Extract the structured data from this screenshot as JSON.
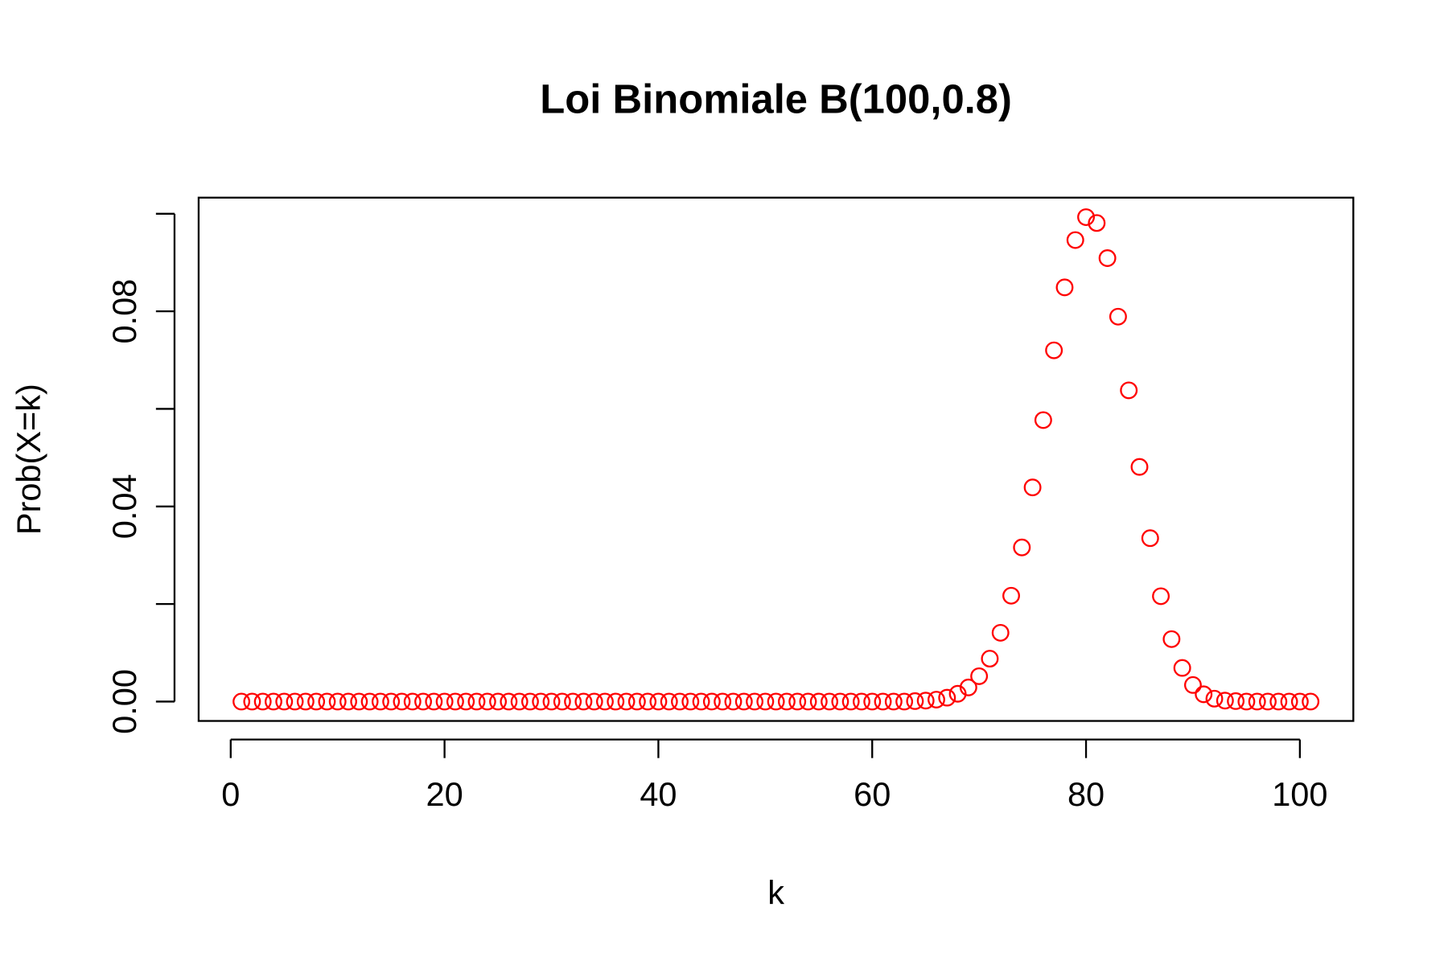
{
  "chart_data": {
    "type": "scatter",
    "title": "Loi Binomiale B(100,0.8)",
    "x_label": "k",
    "y_label": "Prob(X=k)",
    "x": [
      1,
      2,
      3,
      4,
      5,
      6,
      7,
      8,
      9,
      10,
      11,
      12,
      13,
      14,
      15,
      16,
      17,
      18,
      19,
      20,
      21,
      22,
      23,
      24,
      25,
      26,
      27,
      28,
      29,
      30,
      31,
      32,
      33,
      34,
      35,
      36,
      37,
      38,
      39,
      40,
      41,
      42,
      43,
      44,
      45,
      46,
      47,
      48,
      49,
      50,
      51,
      52,
      53,
      54,
      55,
      56,
      57,
      58,
      59,
      60,
      61,
      62,
      63,
      64,
      65,
      66,
      67,
      68,
      69,
      70,
      71,
      72,
      73,
      74,
      75,
      76,
      77,
      78,
      79,
      80,
      81,
      82,
      83,
      84,
      85,
      86,
      87,
      88,
      89,
      90,
      91,
      92,
      93,
      94,
      95,
      96,
      97,
      98,
      99,
      100,
      101
    ],
    "values": [
      0,
      0,
      0,
      0,
      0,
      0,
      0,
      0,
      0,
      0,
      0,
      0,
      0,
      0,
      0,
      0,
      0,
      0,
      0,
      0,
      0,
      0,
      0,
      0,
      0,
      0,
      0,
      0,
      0,
      0,
      0,
      0,
      0,
      0,
      0,
      0,
      0,
      0,
      0,
      0,
      0,
      0,
      0,
      0,
      0,
      0,
      0,
      0,
      0,
      0,
      0,
      0,
      0,
      0,
      0,
      0,
      0,
      0,
      0,
      0,
      0,
      0,
      0,
      0.0001,
      0.0002,
      0.0004,
      0.0008,
      0.0016,
      0.0029,
      0.0052,
      0.0088,
      0.0141,
      0.0217,
      0.0316,
      0.0439,
      0.0577,
      0.072,
      0.0849,
      0.0946,
      0.0993,
      0.0981,
      0.0909,
      0.0789,
      0.0638,
      0.0481,
      0.0335,
      0.0216,
      0.0128,
      0.0069,
      0.0034,
      0.0015,
      0.0006,
      0.0002,
      0.0001,
      0,
      0,
      0,
      0,
      0,
      0,
      0
    ],
    "color": "#ff0000",
    "xlim": [
      -3,
      105
    ],
    "xticks": [
      0,
      20,
      40,
      60,
      80,
      100
    ],
    "ylim": [
      -0.00397,
      0.1033
    ],
    "yticks": [
      {
        "value": 0,
        "label": "0.00"
      },
      {
        "value": 0.04,
        "label": "0.04"
      },
      {
        "value": 0.08,
        "label": "0.08"
      }
    ],
    "yminor_ticks": [
      0.02,
      0.06,
      0.1
    ]
  }
}
